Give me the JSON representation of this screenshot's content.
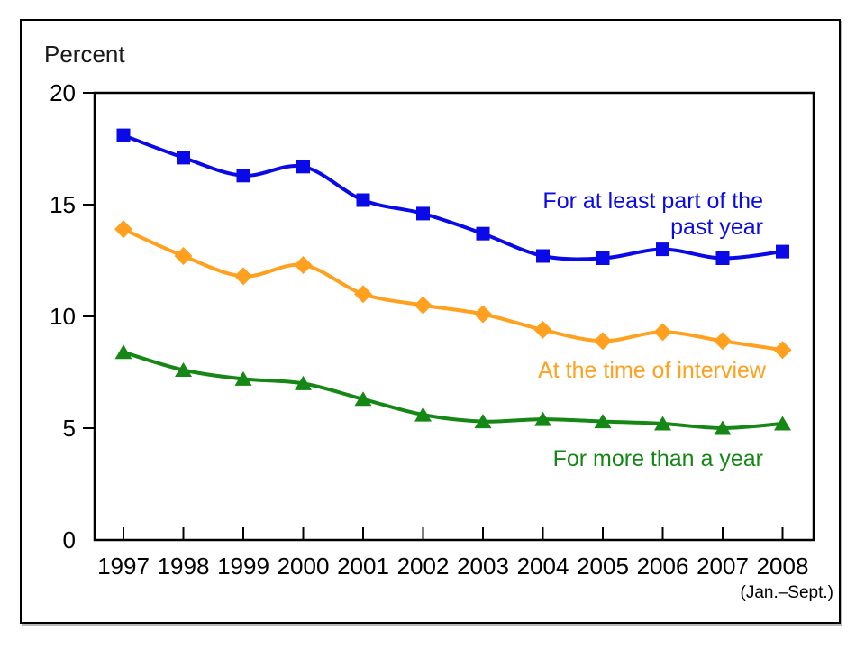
{
  "chart_data": {
    "type": "line",
    "title": "",
    "ylabel": "Percent",
    "xlabel": "",
    "x_note": "(Jan.–Sept.)",
    "categories": [
      "1997",
      "1998",
      "1999",
      "2000",
      "2001",
      "2002",
      "2003",
      "2004",
      "2005",
      "2006",
      "2007",
      "2008"
    ],
    "y_ticks": [
      0,
      5,
      10,
      15,
      20
    ],
    "ylim": [
      0,
      20
    ],
    "grid": false,
    "legend_position": "inline-annotations",
    "series": [
      {
        "name": "For at least part of the past year",
        "label_lines": [
          "For at least part of the",
          "past year"
        ],
        "marker": "square",
        "color": "#0a0ae8",
        "values": [
          18.1,
          17.1,
          16.3,
          16.7,
          15.2,
          14.6,
          13.7,
          12.7,
          12.6,
          13.0,
          12.6,
          12.9
        ]
      },
      {
        "name": "At the time of interview",
        "label_lines": [
          "At the time of interview"
        ],
        "marker": "diamond",
        "color": "#ffa01e",
        "values": [
          13.9,
          12.7,
          11.8,
          12.3,
          11.0,
          10.5,
          10.1,
          9.4,
          8.9,
          9.3,
          8.9,
          8.5
        ]
      },
      {
        "name": "For more than a year",
        "label_lines": [
          "For more than a year"
        ],
        "marker": "triangle",
        "color": "#148714",
        "values": [
          8.4,
          7.6,
          7.2,
          7.0,
          6.3,
          5.6,
          5.3,
          5.4,
          5.3,
          5.2,
          5.0,
          5.2
        ]
      }
    ]
  }
}
